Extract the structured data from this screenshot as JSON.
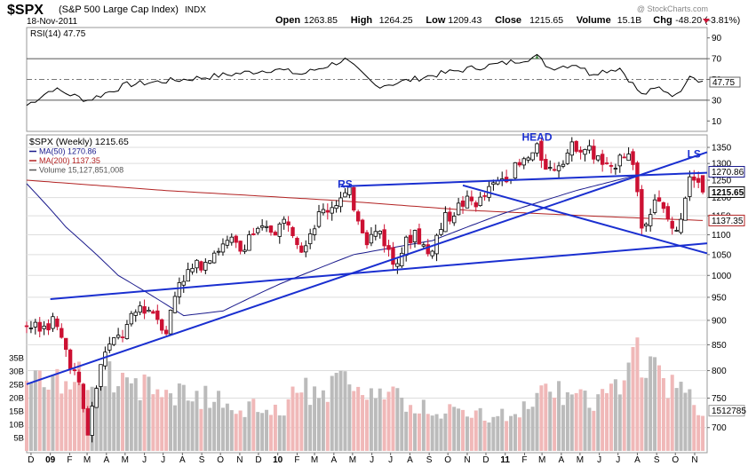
{
  "header": {
    "symbol": "$SPX",
    "name": "(S&P 500 Large Cap Index)",
    "exchange": "INDX",
    "date": "18-Nov-2011",
    "watermark": "@ StockCharts.com",
    "quote": [
      {
        "label": "Open",
        "value": "1263.85"
      },
      {
        "label": "High",
        "value": "1264.25"
      },
      {
        "label": "Low",
        "value": "1209.43"
      },
      {
        "label": "Close",
        "value": "1215.65"
      },
      {
        "label": "Volume",
        "value": "15.1B"
      },
      {
        "label": "Chg",
        "value": "-48.20 (-3.81%)"
      }
    ]
  },
  "rsi_panel": {
    "legend": "RSI(14) 47.75",
    "current_label": "47.75",
    "ticks": [
      "90",
      "70",
      "50",
      "30",
      "10"
    ]
  },
  "price_panel": {
    "legend": [
      {
        "text": "$SPX (Weekly) 1215.65",
        "color": "#000000"
      },
      {
        "text": "MA(50) 1270.86",
        "color": "#1a1a8c"
      },
      {
        "text": "MA(200) 1137.35",
        "color": "#b22222"
      },
      {
        "text": "Volume 15,127,851,008",
        "color": "#555555"
      }
    ],
    "price_ticks": [
      "1350",
      "1300",
      "1250",
      "1200",
      "1150",
      "1100",
      "1050",
      "1000",
      "950",
      "900",
      "850",
      "800",
      "750",
      "700"
    ],
    "volume_ticks": [
      "35B",
      "30B",
      "25B",
      "20B",
      "15B",
      "10B",
      "5B"
    ],
    "current_labels": [
      {
        "text": "1270.86",
        "style": "ma50"
      },
      {
        "text": "1215.65",
        "style": "price"
      },
      {
        "text": "1137.35",
        "style": "ma200"
      },
      {
        "text": "1512785",
        "style": "volume"
      }
    ],
    "annotations": [
      {
        "text": "HEAD",
        "date": "2011-02-21",
        "price": 1372
      },
      {
        "text": "RS",
        "date": "2010-04-19",
        "price": 1228
      },
      {
        "text": "LS",
        "date": "2011-10-31",
        "price": 1318
      }
    ]
  },
  "x_axis": {
    "labels": [
      {
        "text": "D",
        "date": "2008-12-01"
      },
      {
        "text": "09",
        "date": "2009-01-01",
        "bold": true
      },
      {
        "text": "F",
        "date": "2009-02-01"
      },
      {
        "text": "M",
        "date": "2009-03-01"
      },
      {
        "text": "A",
        "date": "2009-04-01"
      },
      {
        "text": "M",
        "date": "2009-05-01"
      },
      {
        "text": "J",
        "date": "2009-06-01"
      },
      {
        "text": "J",
        "date": "2009-07-01"
      },
      {
        "text": "A",
        "date": "2009-08-01"
      },
      {
        "text": "S",
        "date": "2009-09-01"
      },
      {
        "text": "O",
        "date": "2009-10-01"
      },
      {
        "text": "N",
        "date": "2009-11-01"
      },
      {
        "text": "D",
        "date": "2009-12-01"
      },
      {
        "text": "10",
        "date": "2010-01-01",
        "bold": true
      },
      {
        "text": "F",
        "date": "2010-02-01"
      },
      {
        "text": "M",
        "date": "2010-03-01"
      },
      {
        "text": "A",
        "date": "2010-04-01"
      },
      {
        "text": "M",
        "date": "2010-05-01"
      },
      {
        "text": "J",
        "date": "2010-06-01"
      },
      {
        "text": "J",
        "date": "2010-07-01"
      },
      {
        "text": "A",
        "date": "2010-08-01"
      },
      {
        "text": "S",
        "date": "2010-09-01"
      },
      {
        "text": "O",
        "date": "2010-10-01"
      },
      {
        "text": "N",
        "date": "2010-11-01"
      },
      {
        "text": "D",
        "date": "2010-12-01"
      },
      {
        "text": "11",
        "date": "2011-01-01",
        "bold": true
      },
      {
        "text": "F",
        "date": "2011-02-01"
      },
      {
        "text": "M",
        "date": "2011-03-01"
      },
      {
        "text": "A",
        "date": "2011-04-01"
      },
      {
        "text": "M",
        "date": "2011-05-01"
      },
      {
        "text": "J",
        "date": "2011-06-01"
      },
      {
        "text": "J",
        "date": "2011-07-01"
      },
      {
        "text": "A",
        "date": "2011-08-01"
      },
      {
        "text": "S",
        "date": "2011-09-01"
      },
      {
        "text": "O",
        "date": "2011-10-01"
      },
      {
        "text": "N",
        "date": "2011-11-01"
      }
    ]
  },
  "colors": {
    "up": "#000000",
    "down": "#cc1133",
    "ma50": "#1a1a8c",
    "ma200": "#b22222",
    "trendline": "#1a2fd0",
    "volume_up": "#bbbbbb",
    "volume_down": "#f0b8b8",
    "rsi_cloud": "#4a8a4a",
    "grid": "#dddddd"
  },
  "chart_data": {
    "type": "candlestick",
    "x_range": [
      "2008-11-24",
      "2011-11-21"
    ],
    "price_scale": "log",
    "price_range": [
      660,
      1390
    ],
    "rsi_range": [
      0,
      100
    ],
    "rsi_reference_lines": [
      70,
      50,
      30
    ],
    "volume_range_billions": [
      0,
      40
    ],
    "price_anchors": [
      [
        "2008-11-24",
        890
      ],
      [
        "2008-12-15",
        880
      ],
      [
        "2009-01-05",
        900
      ],
      [
        "2009-01-26",
        840
      ],
      [
        "2009-02-16",
        770
      ],
      [
        "2009-03-02",
        690
      ],
      [
        "2009-03-16",
        770
      ],
      [
        "2009-03-30",
        840
      ],
      [
        "2009-04-27",
        870
      ],
      [
        "2009-05-25",
        930
      ],
      [
        "2009-06-15",
        920
      ],
      [
        "2009-07-06",
        880
      ],
      [
        "2009-07-27",
        990
      ],
      [
        "2009-08-24",
        1020
      ],
      [
        "2009-09-21",
        1060
      ],
      [
        "2009-10-19",
        1080
      ],
      [
        "2009-11-02",
        1060
      ],
      [
        "2009-11-16",
        1100
      ],
      [
        "2009-12-28",
        1115
      ],
      [
        "2010-01-18",
        1140
      ],
      [
        "2010-02-08",
        1070
      ],
      [
        "2010-03-08",
        1150
      ],
      [
        "2010-04-05",
        1190
      ],
      [
        "2010-04-26",
        1210
      ],
      [
        "2010-05-24",
        1090
      ],
      [
        "2010-06-14",
        1110
      ],
      [
        "2010-07-05",
        1030
      ],
      [
        "2010-08-09",
        1110
      ],
      [
        "2010-08-30",
        1050
      ],
      [
        "2010-09-27",
        1140
      ],
      [
        "2010-10-25",
        1185
      ],
      [
        "2010-11-22",
        1190
      ],
      [
        "2010-12-27",
        1258
      ],
      [
        "2011-01-24",
        1290
      ],
      [
        "2011-02-21",
        1340
      ],
      [
        "2011-03-14",
        1280
      ],
      [
        "2011-04-25",
        1360
      ],
      [
        "2011-05-16",
        1340
      ],
      [
        "2011-06-20",
        1270
      ],
      [
        "2011-07-04",
        1340
      ],
      [
        "2011-07-25",
        1310
      ],
      [
        "2011-08-08",
        1120
      ],
      [
        "2011-08-29",
        1200
      ],
      [
        "2011-09-19",
        1140
      ],
      [
        "2011-10-03",
        1100
      ],
      [
        "2011-10-24",
        1270
      ],
      [
        "2011-11-07",
        1265
      ],
      [
        "2011-11-14",
        1215.65
      ]
    ],
    "ma50_anchors": [
      [
        "2008-11-24",
        1240
      ],
      [
        "2009-01-26",
        1120
      ],
      [
        "2009-04-20",
        1000
      ],
      [
        "2009-08-03",
        910
      ],
      [
        "2009-10-05",
        920
      ],
      [
        "2010-01-04",
        980
      ],
      [
        "2010-05-03",
        1050
      ],
      [
        "2010-09-06",
        1085
      ],
      [
        "2010-12-27",
        1155
      ],
      [
        "2011-04-25",
        1220
      ],
      [
        "2011-08-01",
        1265
      ],
      [
        "2011-11-14",
        1270.86
      ]
    ],
    "ma200_anchors": [
      [
        "2008-11-24",
        1250
      ],
      [
        "2009-07-06",
        1220
      ],
      [
        "2010-04-05",
        1192
      ],
      [
        "2010-11-01",
        1165
      ],
      [
        "2011-06-06",
        1148
      ],
      [
        "2011-11-14",
        1137.35
      ]
    ],
    "rsi_anchors": [
      [
        "2008-11-24",
        25
      ],
      [
        "2009-01-05",
        41
      ],
      [
        "2009-03-02",
        30
      ],
      [
        "2009-05-04",
        45
      ],
      [
        "2009-08-03",
        50
      ],
      [
        "2009-10-19",
        55
      ],
      [
        "2009-12-28",
        60
      ],
      [
        "2010-02-08",
        55
      ],
      [
        "2010-04-19",
        69
      ],
      [
        "2010-06-07",
        44
      ],
      [
        "2010-07-05",
        46
      ],
      [
        "2010-09-06",
        54
      ],
      [
        "2010-11-01",
        60
      ],
      [
        "2011-01-03",
        66
      ],
      [
        "2011-02-21",
        72
      ],
      [
        "2011-03-14",
        61
      ],
      [
        "2011-04-25",
        65
      ],
      [
        "2011-05-16",
        56
      ],
      [
        "2011-07-04",
        61
      ],
      [
        "2011-08-08",
        35
      ],
      [
        "2011-09-05",
        42
      ],
      [
        "2011-10-03",
        34
      ],
      [
        "2011-10-24",
        55
      ],
      [
        "2011-11-14",
        47.75
      ]
    ],
    "volume_anchors_billions": [
      [
        "2008-11-24",
        26
      ],
      [
        "2009-01-05",
        24
      ],
      [
        "2009-03-09",
        30
      ],
      [
        "2009-05-04",
        25
      ],
      [
        "2009-07-06",
        22
      ],
      [
        "2009-09-07",
        20
      ],
      [
        "2009-12-28",
        14
      ],
      [
        "2010-02-08",
        22
      ],
      [
        "2010-05-03",
        27
      ],
      [
        "2010-06-28",
        20
      ],
      [
        "2010-09-06",
        15
      ],
      [
        "2010-12-27",
        13
      ],
      [
        "2011-03-14",
        22
      ],
      [
        "2011-05-30",
        18
      ],
      [
        "2011-08-08",
        36
      ],
      [
        "2011-09-19",
        25
      ],
      [
        "2011-11-14",
        15.1
      ]
    ],
    "trendlines": [
      {
        "from": [
          "2008-11-24",
          775
        ],
        "to": [
          "2011-11-21",
          1335
        ]
      },
      {
        "from": [
          "2009-01-01",
          946
        ],
        "to": [
          "2011-11-21",
          1078
        ]
      },
      {
        "from": [
          "2010-04-12",
          1232
        ],
        "to": [
          "2011-11-21",
          1272
        ]
      },
      {
        "from": [
          "2010-10-25",
          1235
        ],
        "to": [
          "2011-11-21",
          1053
        ]
      }
    ]
  }
}
